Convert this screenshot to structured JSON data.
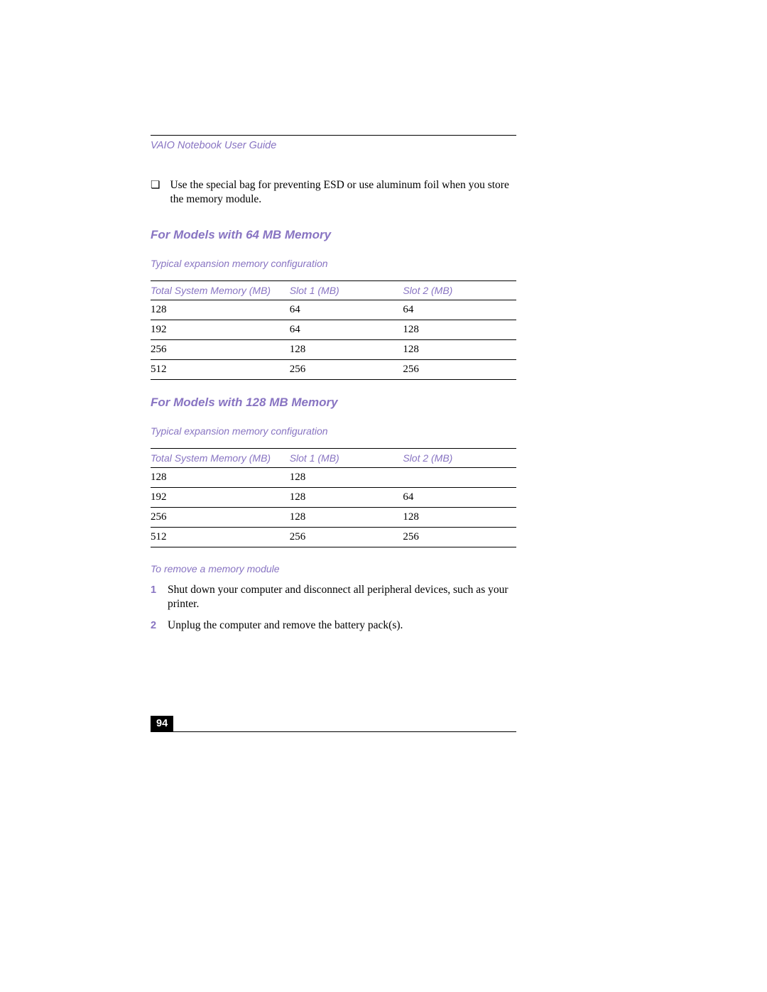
{
  "colors": {
    "accent": "#8874c2",
    "text": "#000000",
    "bg": "#ffffff",
    "pagenum_bg": "#000000",
    "pagenum_fg": "#ffffff"
  },
  "doc_title": "VAIO Notebook User Guide",
  "bullet_symbol": "❏",
  "bullet_text": "Use the special bag for preventing ESD or use aluminum foil when you store the memory module.",
  "section1": {
    "heading": "For Models with 64 MB Memory",
    "caption": "Typical expansion memory configuration",
    "columns": [
      "Total System Memory (MB)",
      "Slot 1 (MB)",
      "Slot 2 (MB)"
    ],
    "rows": [
      [
        "128",
        "64",
        "64"
      ],
      [
        "192",
        "64",
        "128"
      ],
      [
        "256",
        "128",
        "128"
      ],
      [
        "512",
        "256",
        "256"
      ]
    ]
  },
  "section2": {
    "heading": "For Models with 128 MB Memory",
    "caption": "Typical expansion memory configuration",
    "columns": [
      "Total System Memory (MB)",
      "Slot 1 (MB)",
      "Slot 2 (MB)"
    ],
    "rows": [
      [
        "128",
        "128",
        ""
      ],
      [
        "192",
        "128",
        "64"
      ],
      [
        "256",
        "128",
        "128"
      ],
      [
        "512",
        "256",
        "256"
      ]
    ]
  },
  "remove_heading": "To remove a memory module",
  "steps": [
    {
      "n": "1",
      "text": "Shut down your computer and disconnect all peripheral devices, such as your printer."
    },
    {
      "n": "2",
      "text": "Unplug the computer and remove the battery pack(s)."
    }
  ],
  "page_number": "94"
}
